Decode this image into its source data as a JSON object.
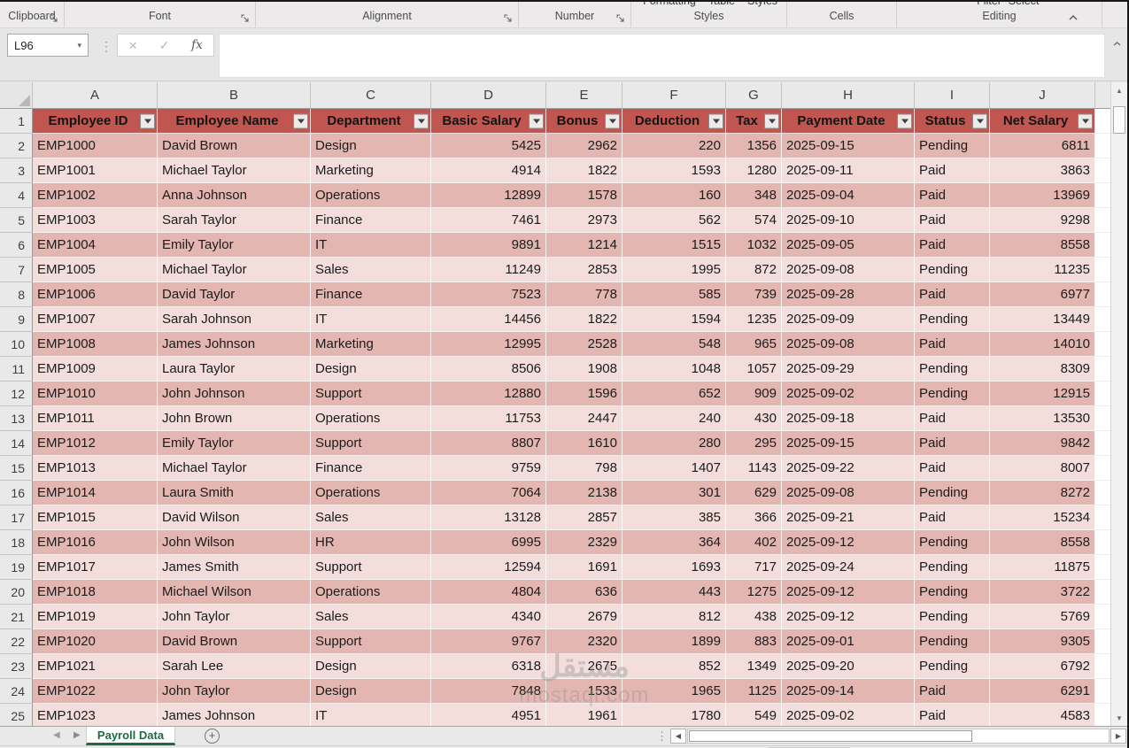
{
  "colors": {
    "header_fill": "#C0564F",
    "band_dark": "#E4B6B2",
    "band_light": "#F3DEDC",
    "tab_green": "#1E6B43"
  },
  "ribbon": {
    "groups": [
      "Clipboard",
      "Font",
      "Alignment",
      "Number",
      "Styles",
      "Cells",
      "Editing"
    ],
    "clipped_buttons": [
      "Formatting",
      "Table",
      "Styles",
      "Filter",
      "Select"
    ]
  },
  "formula_bar": {
    "name_box": "L96",
    "cancel": "×",
    "enter": "✓",
    "fx": "fx",
    "name_dd": "▾"
  },
  "sheet": {
    "column_letters": [
      "A",
      "B",
      "C",
      "D",
      "E",
      "F",
      "G",
      "H",
      "I",
      "J"
    ]
  },
  "table": {
    "headers": [
      "Employee ID",
      "Employee Name",
      "Department",
      "Basic Salary",
      "Bonus",
      "Deduction",
      "Tax",
      "Payment Date",
      "Status",
      "Net Salary"
    ],
    "rows": [
      [
        "EMP1000",
        "David Brown",
        "Design",
        5425,
        2962,
        220,
        1356,
        "2025-09-15",
        "Pending",
        6811
      ],
      [
        "EMP1001",
        "Michael Taylor",
        "Marketing",
        4914,
        1822,
        1593,
        1280,
        "2025-09-11",
        "Paid",
        3863
      ],
      [
        "EMP1002",
        "Anna Johnson",
        "Operations",
        12899,
        1578,
        160,
        348,
        "2025-09-04",
        "Paid",
        13969
      ],
      [
        "EMP1003",
        "Sarah Taylor",
        "Finance",
        7461,
        2973,
        562,
        574,
        "2025-09-10",
        "Paid",
        9298
      ],
      [
        "EMP1004",
        "Emily Taylor",
        "IT",
        9891,
        1214,
        1515,
        1032,
        "2025-09-05",
        "Paid",
        8558
      ],
      [
        "EMP1005",
        "Michael Taylor",
        "Sales",
        11249,
        2853,
        1995,
        872,
        "2025-09-08",
        "Pending",
        11235
      ],
      [
        "EMP1006",
        "David Taylor",
        "Finance",
        7523,
        778,
        585,
        739,
        "2025-09-28",
        "Paid",
        6977
      ],
      [
        "EMP1007",
        "Sarah Johnson",
        "IT",
        14456,
        1822,
        1594,
        1235,
        "2025-09-09",
        "Pending",
        13449
      ],
      [
        "EMP1008",
        "James Johnson",
        "Marketing",
        12995,
        2528,
        548,
        965,
        "2025-09-08",
        "Paid",
        14010
      ],
      [
        "EMP1009",
        "Laura Taylor",
        "Design",
        8506,
        1908,
        1048,
        1057,
        "2025-09-29",
        "Pending",
        8309
      ],
      [
        "EMP1010",
        "John Johnson",
        "Support",
        12880,
        1596,
        652,
        909,
        "2025-09-02",
        "Pending",
        12915
      ],
      [
        "EMP1011",
        "John Brown",
        "Operations",
        11753,
        2447,
        240,
        430,
        "2025-09-18",
        "Paid",
        13530
      ],
      [
        "EMP1012",
        "Emily Taylor",
        "Support",
        8807,
        1610,
        280,
        295,
        "2025-09-15",
        "Paid",
        9842
      ],
      [
        "EMP1013",
        "Michael Taylor",
        "Finance",
        9759,
        798,
        1407,
        1143,
        "2025-09-22",
        "Paid",
        8007
      ],
      [
        "EMP1014",
        "Laura Smith",
        "Operations",
        7064,
        2138,
        301,
        629,
        "2025-09-08",
        "Pending",
        8272
      ],
      [
        "EMP1015",
        "David Wilson",
        "Sales",
        13128,
        2857,
        385,
        366,
        "2025-09-21",
        "Paid",
        15234
      ],
      [
        "EMP1016",
        "John Wilson",
        "HR",
        6995,
        2329,
        364,
        402,
        "2025-09-12",
        "Pending",
        8558
      ],
      [
        "EMP1017",
        "James Smith",
        "Support",
        12594,
        1691,
        1693,
        717,
        "2025-09-24",
        "Pending",
        11875
      ],
      [
        "EMP1018",
        "Michael Wilson",
        "Operations",
        4804,
        636,
        443,
        1275,
        "2025-09-12",
        "Pending",
        3722
      ],
      [
        "EMP1019",
        "John Taylor",
        "Sales",
        4340,
        2679,
        812,
        438,
        "2025-09-12",
        "Pending",
        5769
      ],
      [
        "EMP1020",
        "David Brown",
        "Support",
        9767,
        2320,
        1899,
        883,
        "2025-09-01",
        "Pending",
        9305
      ],
      [
        "EMP1021",
        "Sarah Lee",
        "Design",
        6318,
        2675,
        852,
        1349,
        "2025-09-20",
        "Pending",
        6792
      ],
      [
        "EMP1022",
        "John Taylor",
        "Design",
        7848,
        1533,
        1965,
        1125,
        "2025-09-14",
        "Paid",
        6291
      ],
      [
        "EMP1023",
        "James Johnson",
        "IT",
        4951,
        1961,
        1780,
        549,
        "2025-09-02",
        "Paid",
        4583
      ]
    ]
  },
  "tabs": {
    "active": "Payroll Data"
  },
  "watermark": {
    "line1": "مستقل",
    "line2": "mostaql.com"
  }
}
